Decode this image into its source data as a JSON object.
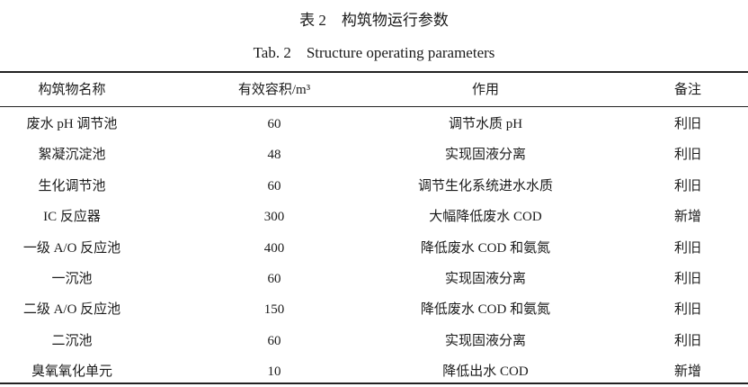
{
  "title": "表 2　构筑物运行参数",
  "subtitle": "Tab. 2　Structure operating parameters",
  "columns": [
    "构筑物名称",
    "有效容积/m³",
    "作用",
    "备注"
  ],
  "rows": [
    [
      "废水 pH 调节池",
      "60",
      "调节水质 pH",
      "利旧"
    ],
    [
      "絮凝沉淀池",
      "48",
      "实现固液分离",
      "利旧"
    ],
    [
      "生化调节池",
      "60",
      "调节生化系统进水水质",
      "利旧"
    ],
    [
      "IC 反应器",
      "300",
      "大幅降低废水 COD",
      "新增"
    ],
    [
      "一级 A/O 反应池",
      "400",
      "降低废水 COD 和氨氮",
      "利旧"
    ],
    [
      "一沉池",
      "60",
      "实现固液分离",
      "利旧"
    ],
    [
      "二级 A/O 反应池",
      "150",
      "降低废水 COD 和氨氮",
      "利旧"
    ],
    [
      "二沉池",
      "60",
      "实现固液分离",
      "利旧"
    ],
    [
      "臭氧氧化单元",
      "10",
      "降低出水 COD",
      "新增"
    ]
  ]
}
